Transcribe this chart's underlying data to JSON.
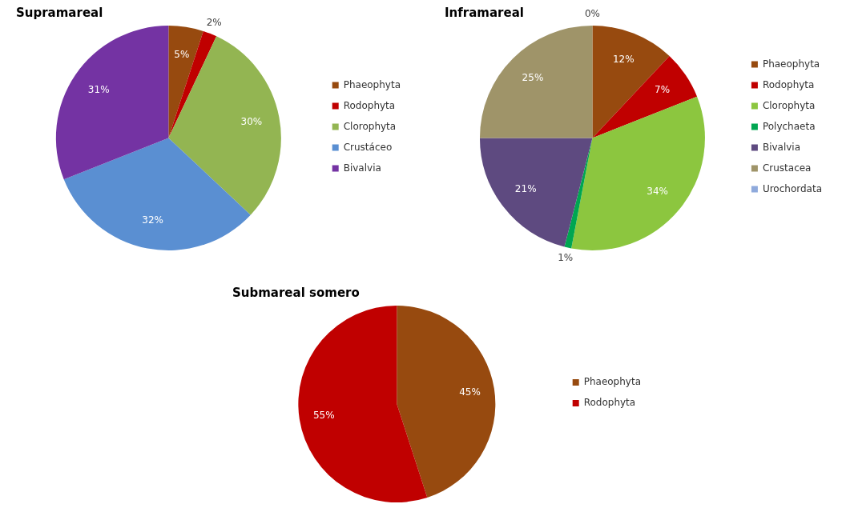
{
  "chart_data": [
    {
      "type": "pie",
      "title": "Supramareal",
      "categories": [
        "Phaeophyta",
        "Rodophyta",
        "Clorophyta",
        "Crustáceo",
        "Bivalvia"
      ],
      "values": [
        5,
        2,
        30,
        32,
        31
      ],
      "value_labels": [
        "5%",
        "2%",
        "30%",
        "32%",
        "31%"
      ],
      "colors": [
        "#974a0f",
        "#c00000",
        "#93b552",
        "#5a8fd2",
        "#7433a3"
      ],
      "legend": "right"
    },
    {
      "type": "pie",
      "title": "Inframareal",
      "categories": [
        "Phaeophyta",
        "Rodophyta",
        "Clorophyta",
        "Polychaeta",
        "Bivalvia",
        "Crustacea",
        "Urochordata"
      ],
      "values": [
        12,
        7,
        34,
        1,
        21,
        25,
        0
      ],
      "value_labels": [
        "12%",
        "7%",
        "34%",
        "1%",
        "21%",
        "25%",
        "0%"
      ],
      "colors": [
        "#974a0f",
        "#c00000",
        "#8cc63f",
        "#00a651",
        "#5e4a80",
        "#9f9469",
        "#8faadc"
      ],
      "legend": "right"
    },
    {
      "type": "pie",
      "title": "Submareal somero",
      "categories": [
        "Phaeophyta",
        "Rodophyta"
      ],
      "values": [
        45,
        55
      ],
      "value_labels": [
        "45%",
        "55%"
      ],
      "colors": [
        "#974a0f",
        "#c00000"
      ],
      "legend": "right"
    }
  ]
}
